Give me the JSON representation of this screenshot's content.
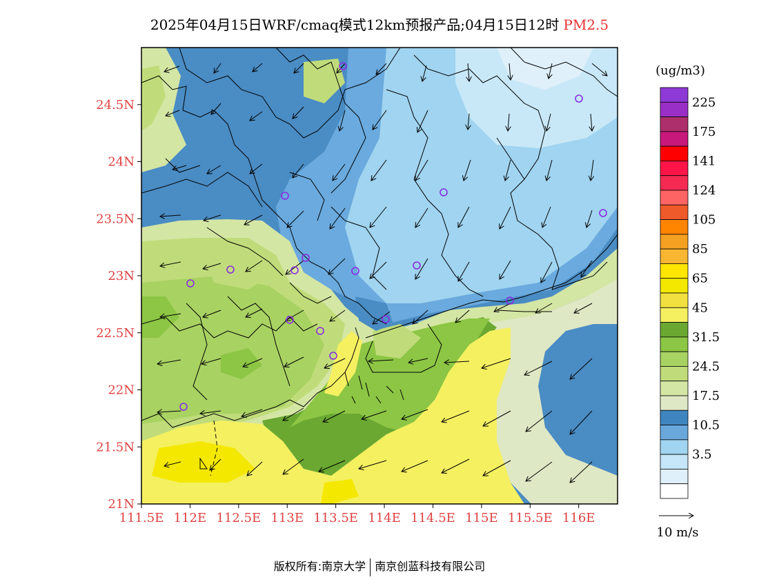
{
  "title": {
    "main": "2025年04月15日WRF/cmaq模式12km预报产品;04月15日12时",
    "pollutant": "PM2.5"
  },
  "axes": {
    "lat_labels": [
      "24.5N",
      "24N",
      "23.5N",
      "23N",
      "22.5N",
      "22N",
      "21.5N",
      "21N"
    ],
    "lat_values": [
      24.5,
      24,
      23.5,
      23,
      22.5,
      22,
      21.5,
      21
    ],
    "lon_labels": [
      "111.5E",
      "112E",
      "112.5E",
      "113E",
      "113.5E",
      "114E",
      "114.5E",
      "115E",
      "115.5E",
      "116E"
    ],
    "lon_values": [
      111.5,
      112,
      112.5,
      113,
      113.5,
      114,
      114.5,
      115,
      115.5,
      116
    ],
    "lat_range": [
      21,
      25
    ],
    "lon_range": [
      111.5,
      116.4
    ]
  },
  "legend": {
    "unit": "(ug/m3)",
    "labels": [
      "225",
      "175",
      "141",
      "124",
      "105",
      "85",
      "65",
      "45",
      "31.5",
      "24.5",
      "17.5",
      "10.5",
      "3.5"
    ],
    "colors": [
      "#8e3ad6",
      "#9a2fc8",
      "#ad2f6c",
      "#c8187c",
      "#ff0000",
      "#ff1447",
      "#f42a52",
      "#ff6464",
      "#ee5a2a",
      "#ff8400",
      "#f4a020",
      "#f8b632",
      "#ffe600",
      "#f4e800",
      "#f2e040",
      "#f5f060",
      "#6aa832",
      "#8cc644",
      "#a8d262",
      "#c0dc7a",
      "#d4e6a4",
      "#dfe8c4",
      "#3f86c0",
      "#6aa8dc",
      "#a0d4f0",
      "#c4e6f8",
      "#dff0fb",
      "#ffffff"
    ]
  },
  "wind_scale": {
    "label": "10 m/s"
  },
  "footer": {
    "left": "版权所有:南京大学",
    "right": "南京创蓝科技有限公司"
  }
}
